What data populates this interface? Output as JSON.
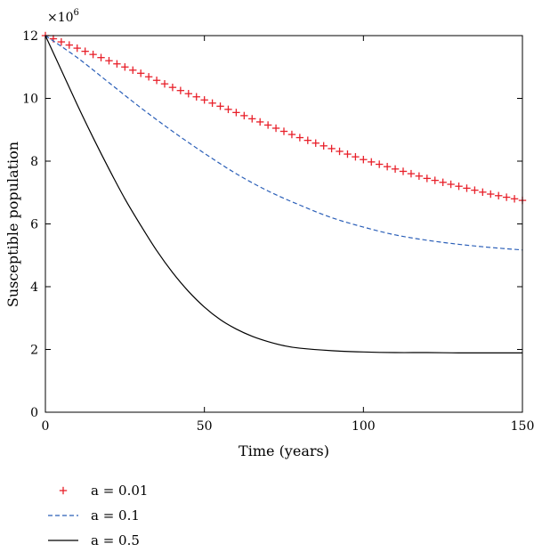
{
  "chart_data": {
    "type": "line",
    "title": "",
    "xlabel": "Time (years)",
    "ylabel": "Susceptible population",
    "y_multiplier": "×10",
    "y_multiplier_exponent": "6",
    "xlim": [
      0,
      150
    ],
    "ylim": [
      0,
      12
    ],
    "xticks": [
      0,
      50,
      100,
      150
    ],
    "yticks": [
      0,
      2,
      4,
      6,
      8,
      10,
      12
    ],
    "grid": false,
    "legend_position": "bottom-left, below plot",
    "series": [
      {
        "name": "a = 0.01",
        "style": "plus-markers",
        "color": "#e8202a",
        "x": [
          0,
          10,
          20,
          30,
          40,
          50,
          60,
          70,
          80,
          90,
          100,
          110,
          120,
          130,
          140,
          150
        ],
        "y": [
          12.0,
          11.6,
          11.2,
          10.8,
          10.35,
          9.95,
          9.55,
          9.15,
          8.75,
          8.4,
          8.05,
          7.75,
          7.45,
          7.2,
          6.95,
          6.75
        ]
      },
      {
        "name": "a = 0.1",
        "style": "dashed",
        "color": "#2b5fb8",
        "x": [
          0,
          10,
          20,
          30,
          40,
          50,
          60,
          70,
          80,
          90,
          100,
          110,
          120,
          130,
          140,
          150
        ],
        "y": [
          12.0,
          11.3,
          10.5,
          9.7,
          8.95,
          8.25,
          7.6,
          7.05,
          6.6,
          6.2,
          5.9,
          5.65,
          5.48,
          5.35,
          5.25,
          5.17
        ]
      },
      {
        "name": "a = 0.5",
        "style": "solid",
        "color": "#000000",
        "x": [
          0,
          5,
          10,
          15,
          20,
          25,
          30,
          35,
          40,
          45,
          50,
          55,
          60,
          65,
          70,
          75,
          80,
          90,
          100,
          110,
          120,
          130,
          140,
          150
        ],
        "y": [
          12.0,
          10.9,
          9.8,
          8.75,
          7.75,
          6.8,
          5.95,
          5.15,
          4.45,
          3.85,
          3.35,
          2.95,
          2.65,
          2.42,
          2.25,
          2.12,
          2.04,
          1.96,
          1.92,
          1.9,
          1.9,
          1.89,
          1.89,
          1.89
        ]
      }
    ]
  }
}
